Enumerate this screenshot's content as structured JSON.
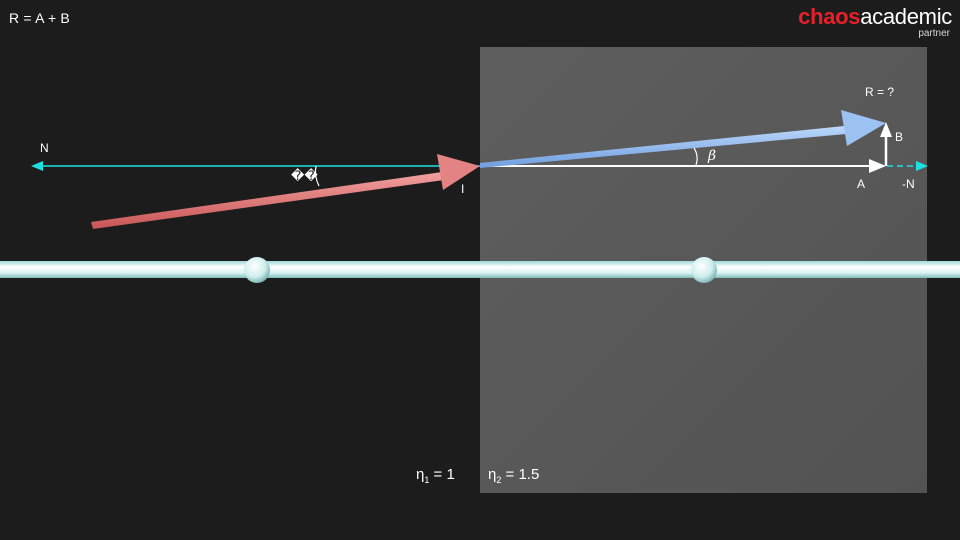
{
  "formula": "R = A + B",
  "logo": {
    "word_red": "chaos",
    "word_white": "academic",
    "subtitle": "partner",
    "brand_color": "#e8202a"
  },
  "labels": {
    "normal": "N",
    "negative_normal": "-N",
    "incidence_point": "I",
    "vector_a": "A",
    "vector_b": "B",
    "result_query": "R = ?",
    "alpha_glyph": "��",
    "beta": "β"
  },
  "media": {
    "eta1": {
      "symbol": "η",
      "index": "1",
      "value": "= 1"
    },
    "eta2": {
      "symbol": "η",
      "index": "2",
      "value": "= 1.5"
    }
  },
  "colors": {
    "background": "#1c1c1c",
    "medium": "#5a5a5a",
    "normal_line": "#1ee0e0",
    "incident_ray": "#e07070",
    "refracted_ray": "#8fb8ee",
    "vector_a": "#ffffff",
    "tube": "#e6f7f7"
  }
}
